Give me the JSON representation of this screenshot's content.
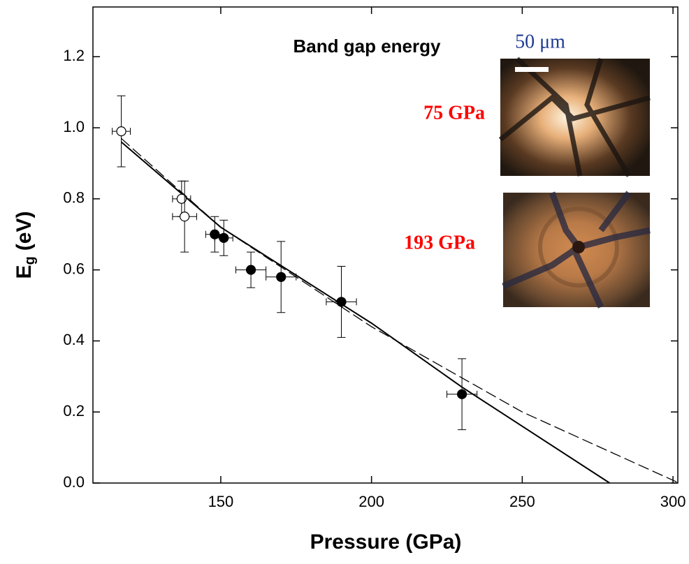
{
  "chart_data": {
    "type": "scatter",
    "title": "Band gap energy",
    "x_label": "Pressure (GPa)",
    "y_label": {
      "symbol": "E",
      "subscript": "g",
      "unit": "(eV)"
    },
    "xlim": [
      107.6,
      301.6
    ],
    "ylim": [
      0,
      1.34
    ],
    "xticks": [
      150,
      200,
      250,
      300
    ],
    "yticks": [
      {
        "value": 0,
        "label": "0.0"
      },
      0.2,
      0.4,
      0.6,
      0.8,
      {
        "value": 1,
        "label": "1.0"
      },
      1.2
    ],
    "series": [
      {
        "marker": "open",
        "color": "#000000",
        "x": [
          117,
          137,
          138
        ],
        "values": [
          0.99,
          0.8,
          0.75
        ],
        "xerr": [
          3,
          3,
          4
        ],
        "yerr": [
          0.1,
          0.05,
          0.1
        ]
      },
      {
        "marker": "filled",
        "color": "#000000",
        "x": [
          148,
          151,
          160,
          170,
          190,
          230
        ],
        "values": [
          0.7,
          0.69,
          0.6,
          0.58,
          0.51,
          0.25
        ],
        "xerr": [
          3,
          3,
          5,
          5,
          5,
          5
        ],
        "yerr": [
          0.05,
          0.05,
          0.05,
          0.1,
          0.1,
          0.1
        ]
      }
    ],
    "fits": [
      {
        "style": "solid",
        "color": "#000000",
        "x": [
          117,
          150,
          200,
          230,
          279
        ],
        "values": [
          0.96,
          0.72,
          0.45,
          0.27,
          0
        ]
      },
      {
        "style": "dashed",
        "color": "#000000",
        "x": [
          117,
          150,
          200,
          250,
          302
        ],
        "values": [
          0.97,
          0.72,
          0.44,
          0.2,
          0
        ]
      }
    ],
    "insets": [
      {
        "label": "75 GPa",
        "label_color": "#ff0000"
      },
      {
        "label": "193 GPa",
        "label_color": "#ff0000"
      }
    ],
    "scale_bar": {
      "label": "50 μm",
      "color": "#1f3a93"
    }
  }
}
